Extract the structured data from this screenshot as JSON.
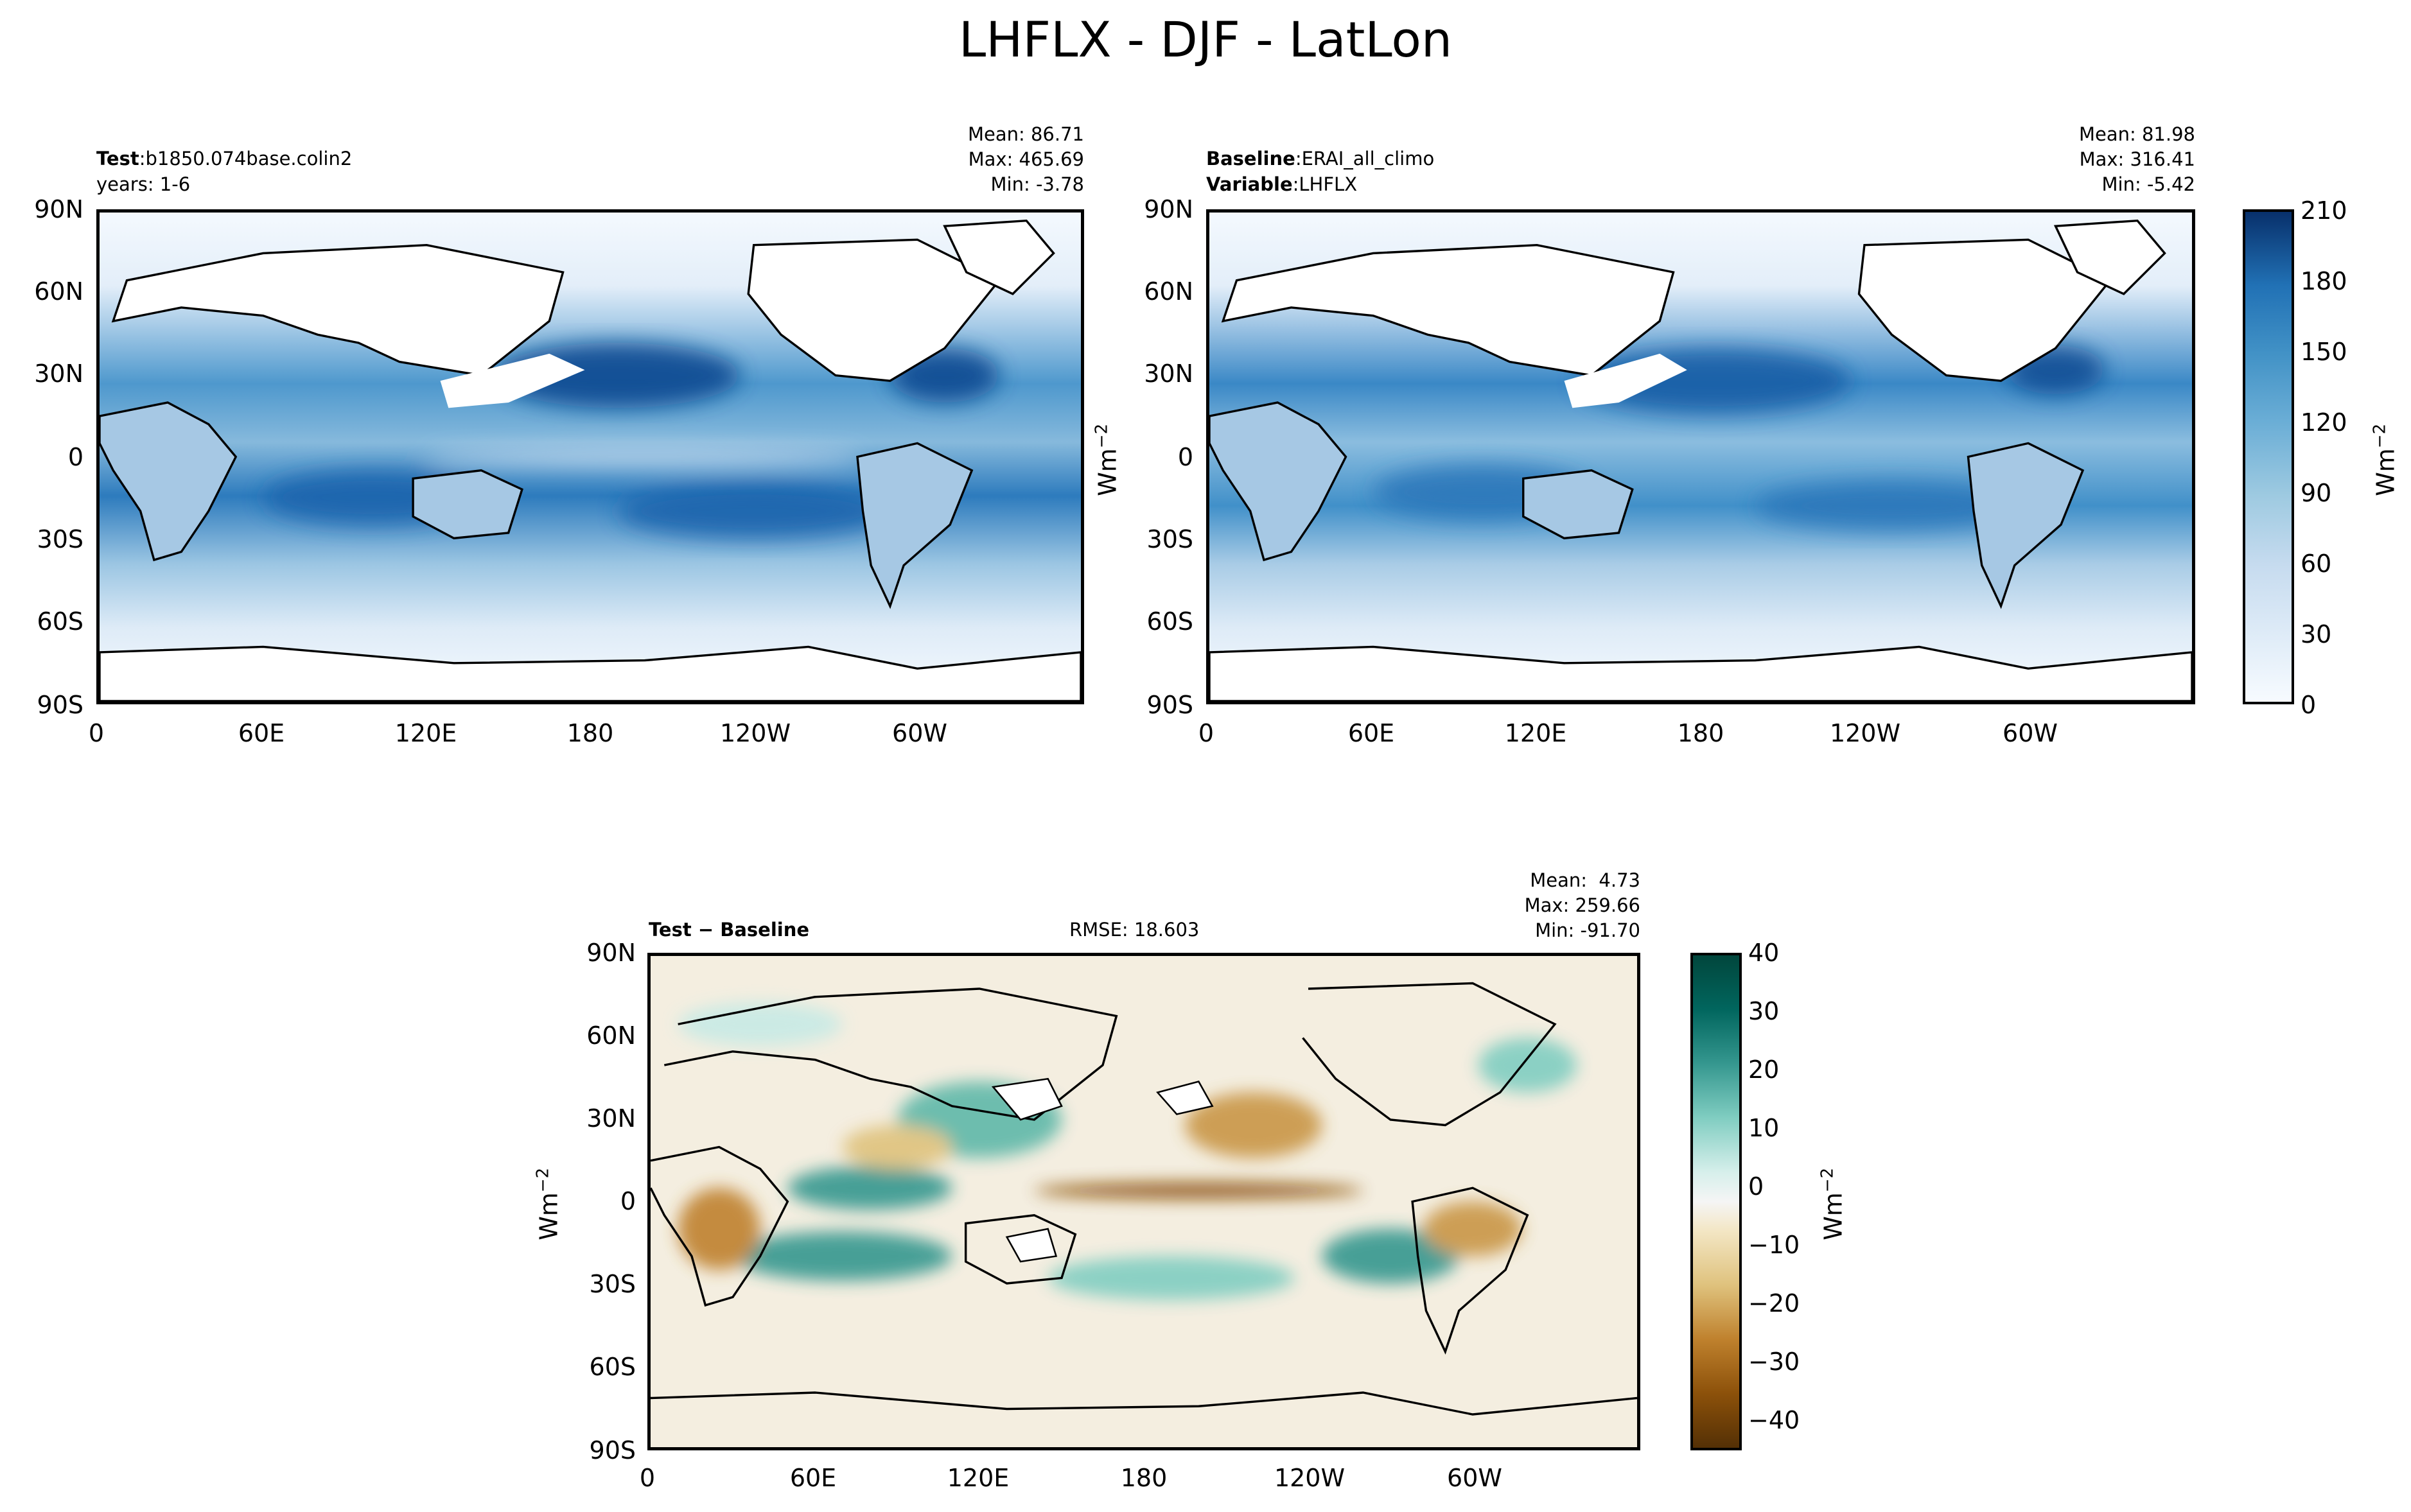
{
  "title": "LHFLX - DJF - LatLon",
  "panels": {
    "test": {
      "label_bold": "Test",
      "label_sep": ":",
      "label_value": "b1850.074base.colin2",
      "line2": "years: 1-6",
      "mean": "Mean: 86.71",
      "max": "Max: 465.69",
      "min": "Min: -3.78",
      "ylabel": "Wm",
      "ylabel_sup": "−2"
    },
    "baseline": {
      "label_bold": "Baseline",
      "label_sep": ":",
      "label_value": "ERAI_all_climo",
      "var_bold": "Variable",
      "var_sep": ":",
      "var_value": "LHFLX",
      "mean": "Mean: 81.98",
      "max": "Max: 316.41",
      "min": "Min: -5.42"
    },
    "diff": {
      "label": "Test − Baseline",
      "rmse": "RMSE: 18.603",
      "mean": "Mean:  4.73",
      "max": "Max: 259.66",
      "min": "Min: -91.70",
      "ylabel": "Wm",
      "ylabel_sup": "−2"
    }
  },
  "axes": {
    "lat_ticks": [
      "90N",
      "60N",
      "30N",
      "0",
      "30S",
      "60S",
      "90S"
    ],
    "lon_ticks": [
      "0",
      "60E",
      "120E",
      "180",
      "120W",
      "60W"
    ]
  },
  "colorbars": {
    "main": {
      "ticks": [
        "210",
        "180",
        "150",
        "120",
        "90",
        "60",
        "30",
        "0"
      ],
      "range": [
        0,
        210
      ],
      "unit": "Wm",
      "unit_sup": "−2",
      "colormap": "Blues"
    },
    "diff": {
      "ticks": [
        "40",
        "30",
        "20",
        "10",
        "0",
        "−10",
        "−20",
        "−30",
        "−40"
      ],
      "range": [
        -40,
        40
      ],
      "unit": "Wm",
      "unit_sup": "−2",
      "colormap": "BrBG"
    }
  },
  "colors": {
    "blue_dark": "#08306b",
    "blue_mid": "#2f7dbf",
    "blue_light": "#c6dbef",
    "teal_dark": "#01463c",
    "brown_dark": "#543005",
    "neutral": "#f5f5f5"
  }
}
